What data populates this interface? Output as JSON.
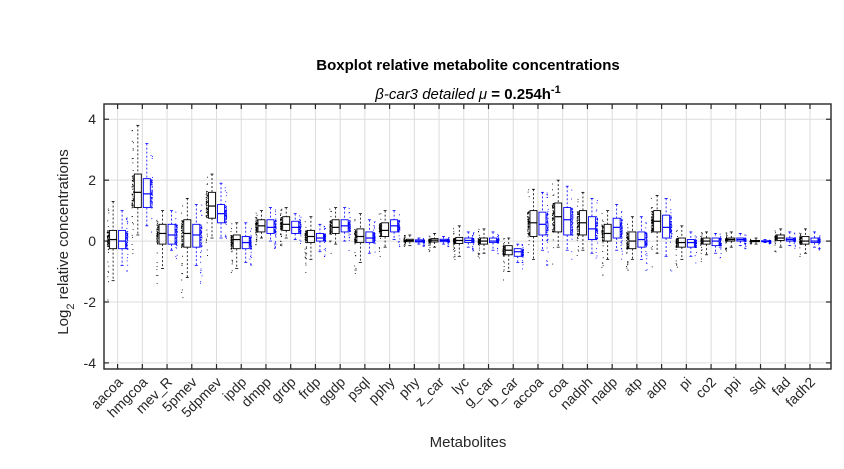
{
  "chart_data": {
    "type": "boxplot",
    "title": "Boxplot relative metabolite concentrations",
    "subtitle": {
      "prefix": "β-car3 detailed ",
      "mu": "μ",
      "middle": " = 0.254h",
      "sup": "-1"
    },
    "xlabel": "Metabolites",
    "ylabel": {
      "prefix": "Log",
      "sub": "2",
      "suffix": " relative concentrations"
    },
    "ylim": [
      -4.2,
      4.5
    ],
    "yticks": [
      -4,
      -2,
      0,
      2,
      4
    ],
    "grid": true,
    "categories": [
      "aacoa",
      "hmgcoa",
      "mev_R",
      "5pmev",
      "5dpmev",
      "ipdp",
      "dmpp",
      "grdp",
      "frdp",
      "ggdp",
      "psql",
      "pphy",
      "phy",
      "z_car",
      "lyc",
      "g_car",
      "b_car",
      "accoa",
      "coa",
      "nadph",
      "nadp",
      "atp",
      "adp",
      "pi",
      "co2",
      "ppi",
      "sql",
      "fad",
      "fadh2"
    ],
    "colors": {
      "series_a": "#000000",
      "series_b": "#0000ff",
      "grid": "#dcdcdc",
      "axis": "#262626"
    },
    "series": [
      {
        "color": "#000000",
        "boxes": [
          [
            -1.3,
            -0.25,
            0.05,
            0.35,
            1.3
          ],
          [
            0.2,
            1.1,
            1.6,
            2.2,
            3.8
          ],
          [
            -0.9,
            -0.1,
            0.25,
            0.55,
            1.0
          ],
          [
            -1.2,
            -0.2,
            0.25,
            0.7,
            1.4
          ],
          [
            0.1,
            0.75,
            1.15,
            1.6,
            2.2
          ],
          [
            -0.9,
            -0.25,
            0.05,
            0.2,
            0.6
          ],
          [
            0.1,
            0.3,
            0.5,
            0.7,
            1.0
          ],
          [
            0.1,
            0.35,
            0.55,
            0.8,
            1.1
          ],
          [
            -0.6,
            -0.05,
            0.15,
            0.35,
            0.8
          ],
          [
            -0.1,
            0.25,
            0.45,
            0.7,
            1.1
          ],
          [
            -0.7,
            -0.05,
            0.15,
            0.4,
            0.9
          ],
          [
            -0.2,
            0.15,
            0.35,
            0.6,
            1.0
          ],
          [
            -0.15,
            -0.02,
            0.02,
            0.06,
            0.2
          ],
          [
            -0.2,
            -0.03,
            0.03,
            0.08,
            0.25
          ],
          [
            -0.5,
            -0.08,
            0.02,
            0.12,
            0.5
          ],
          [
            -0.4,
            -0.1,
            0.0,
            0.1,
            0.4
          ],
          [
            -1.0,
            -0.45,
            -0.3,
            -0.15,
            0.1
          ],
          [
            -0.6,
            0.15,
            0.6,
            1.0,
            1.7
          ],
          [
            -0.2,
            0.3,
            0.8,
            1.25,
            2.0
          ],
          [
            -0.3,
            0.2,
            0.6,
            1.0,
            1.6
          ],
          [
            -0.6,
            0.0,
            0.25,
            0.55,
            1.0
          ],
          [
            -0.6,
            -0.25,
            0.0,
            0.3,
            0.8
          ],
          [
            -0.4,
            0.3,
            0.65,
            1.0,
            1.5
          ],
          [
            -0.6,
            -0.2,
            -0.05,
            0.1,
            0.5
          ],
          [
            -0.45,
            -0.1,
            0.0,
            0.1,
            0.3
          ],
          [
            -0.2,
            0.0,
            0.05,
            0.1,
            0.3
          ],
          [
            -0.1,
            -0.02,
            0.0,
            0.02,
            0.1
          ],
          [
            -0.2,
            0.02,
            0.1,
            0.2,
            0.4
          ],
          [
            -0.4,
            -0.1,
            0.0,
            0.15,
            0.4
          ]
        ]
      },
      {
        "color": "#0000ff",
        "boxes": [
          [
            -0.8,
            -0.25,
            0.0,
            0.35,
            1.0
          ],
          [
            0.5,
            1.1,
            1.55,
            2.05,
            3.2
          ],
          [
            -0.3,
            -0.1,
            0.2,
            0.55,
            1.0
          ],
          [
            -0.8,
            -0.2,
            0.2,
            0.55,
            1.2
          ],
          [
            0.1,
            0.6,
            0.9,
            1.2,
            1.9
          ],
          [
            -0.7,
            -0.25,
            -0.05,
            0.15,
            0.6
          ],
          [
            0.0,
            0.25,
            0.45,
            0.7,
            1.1
          ],
          [
            0.05,
            0.25,
            0.45,
            0.65,
            0.9
          ],
          [
            -0.35,
            0.0,
            0.1,
            0.25,
            0.55
          ],
          [
            0.0,
            0.3,
            0.5,
            0.7,
            1.1
          ],
          [
            -0.4,
            -0.05,
            0.1,
            0.3,
            0.7
          ],
          [
            0.05,
            0.3,
            0.5,
            0.7,
            1.0
          ],
          [
            -0.1,
            -0.03,
            0.0,
            0.04,
            0.1
          ],
          [
            -0.1,
            -0.02,
            0.02,
            0.06,
            0.15
          ],
          [
            -0.2,
            -0.05,
            0.02,
            0.1,
            0.3
          ],
          [
            -0.3,
            -0.05,
            0.0,
            0.1,
            0.3
          ],
          [
            -0.7,
            -0.5,
            -0.35,
            -0.25,
            -0.1
          ],
          [
            -0.3,
            0.2,
            0.55,
            0.95,
            1.6
          ],
          [
            -0.3,
            0.2,
            0.7,
            1.1,
            1.8
          ],
          [
            -0.4,
            0.05,
            0.4,
            0.8,
            1.4
          ],
          [
            -0.3,
            0.1,
            0.45,
            0.75,
            1.2
          ],
          [
            -0.6,
            -0.2,
            0.05,
            0.3,
            0.8
          ],
          [
            -0.5,
            0.1,
            0.45,
            0.85,
            1.4
          ],
          [
            -0.5,
            -0.2,
            -0.05,
            0.05,
            0.3
          ],
          [
            -0.4,
            -0.15,
            0.0,
            0.1,
            0.25
          ],
          [
            -0.15,
            0.0,
            0.05,
            0.1,
            0.25
          ],
          [
            -0.05,
            -0.01,
            0.0,
            0.01,
            0.05
          ],
          [
            -0.15,
            0.0,
            0.05,
            0.1,
            0.3
          ],
          [
            -0.2,
            -0.05,
            0.0,
            0.1,
            0.3
          ]
        ]
      }
    ]
  }
}
